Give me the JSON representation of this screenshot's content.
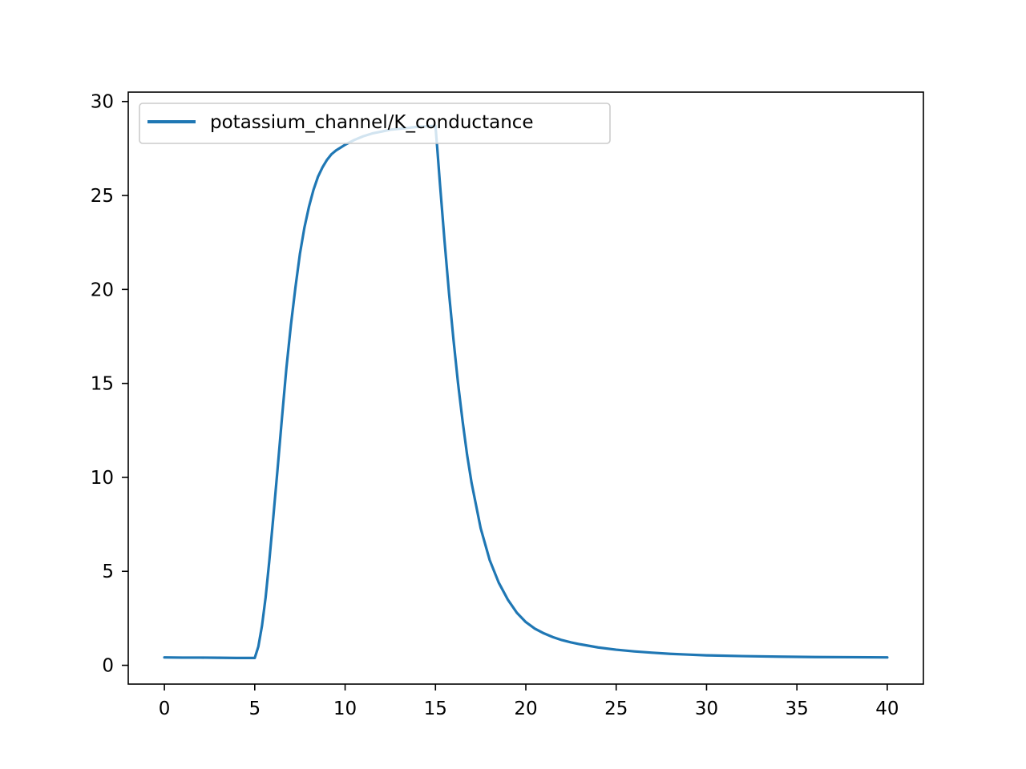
{
  "chart_data": {
    "type": "line",
    "title": "",
    "xlabel": "",
    "ylabel": "",
    "xlim": [
      -2,
      42
    ],
    "ylim": [
      -1,
      30.5
    ],
    "x_ticks": [
      0,
      5,
      10,
      15,
      20,
      25,
      30,
      35,
      40
    ],
    "x_tick_labels": [
      "0",
      "5",
      "10",
      "15",
      "20",
      "25",
      "30",
      "35",
      "40"
    ],
    "y_ticks": [
      0,
      5,
      10,
      15,
      20,
      25,
      30
    ],
    "y_tick_labels": [
      "0",
      "5",
      "10",
      "15",
      "20",
      "25",
      "30"
    ],
    "grid": false,
    "legend": {
      "position": "upper-left",
      "entries": [
        "potassium_channel/K_conductance"
      ]
    },
    "series": [
      {
        "name": "potassium_channel/K_conductance",
        "color": "#1f77b4",
        "x": [
          0,
          1,
          2,
          3,
          4,
          5,
          5.2,
          5.4,
          5.6,
          5.8,
          6,
          6.25,
          6.5,
          6.75,
          7,
          7.25,
          7.5,
          7.75,
          8,
          8.25,
          8.5,
          8.75,
          9,
          9.25,
          9.5,
          9.75,
          10,
          10.5,
          11,
          11.5,
          12,
          12.5,
          13,
          13.5,
          14,
          14.5,
          15,
          15.1,
          15.25,
          15.5,
          15.75,
          16,
          16.25,
          16.5,
          16.75,
          17,
          17.5,
          18,
          18.5,
          19,
          19.5,
          20,
          20.5,
          21,
          21.5,
          22,
          22.5,
          23,
          24,
          25,
          26,
          27,
          28,
          29,
          30,
          32,
          34,
          36,
          38,
          40
        ],
        "y": [
          0.42,
          0.41,
          0.41,
          0.4,
          0.39,
          0.39,
          1.0,
          2.1,
          3.6,
          5.5,
          7.6,
          10.3,
          13.1,
          15.8,
          18.1,
          20.1,
          21.9,
          23.3,
          24.4,
          25.3,
          26.0,
          26.5,
          26.9,
          27.2,
          27.4,
          27.55,
          27.7,
          27.95,
          28.15,
          28.3,
          28.4,
          28.5,
          28.55,
          28.6,
          28.65,
          28.68,
          28.7,
          27.5,
          25.6,
          22.6,
          19.8,
          17.3,
          15.0,
          13.0,
          11.2,
          9.7,
          7.3,
          5.6,
          4.4,
          3.5,
          2.8,
          2.3,
          1.95,
          1.7,
          1.5,
          1.34,
          1.22,
          1.12,
          0.95,
          0.83,
          0.74,
          0.67,
          0.61,
          0.57,
          0.53,
          0.49,
          0.46,
          0.44,
          0.43,
          0.42
        ]
      }
    ]
  }
}
